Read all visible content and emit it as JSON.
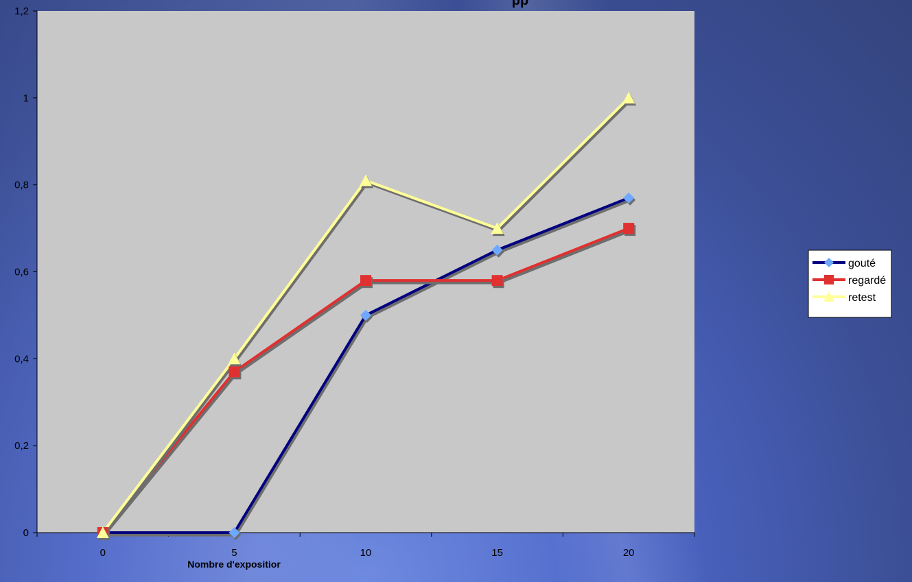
{
  "chart_data": {
    "type": "line",
    "title": "pp",
    "xlabel": "Nombre d'expositior",
    "ylabel": "",
    "categories": [
      "0",
      "5",
      "10",
      "15",
      "20"
    ],
    "ylim": [
      0,
      1.2
    ],
    "yticks": [
      "0",
      "0,2",
      "0,4",
      "0,6",
      "0,8",
      "1",
      "1,2"
    ],
    "grid": false,
    "legend": "right",
    "series": [
      {
        "name": "gouté",
        "values": [
          0,
          0,
          0.5,
          0.65,
          0.77
        ],
        "color": "#000080",
        "marker": "diamond",
        "marker_color": "#6fa8ff"
      },
      {
        "name": "regardé",
        "values": [
          0,
          0.37,
          0.58,
          0.58,
          0.7
        ],
        "color": "#e03030",
        "marker": "square",
        "marker_color": "#e03030"
      },
      {
        "name": "retest",
        "values": [
          0,
          0.4,
          0.81,
          0.7,
          1.0
        ],
        "color": "#ffff99",
        "marker": "triangle",
        "marker_color": "#ffff99"
      }
    ],
    "plot_background": "#c8c8c8"
  }
}
